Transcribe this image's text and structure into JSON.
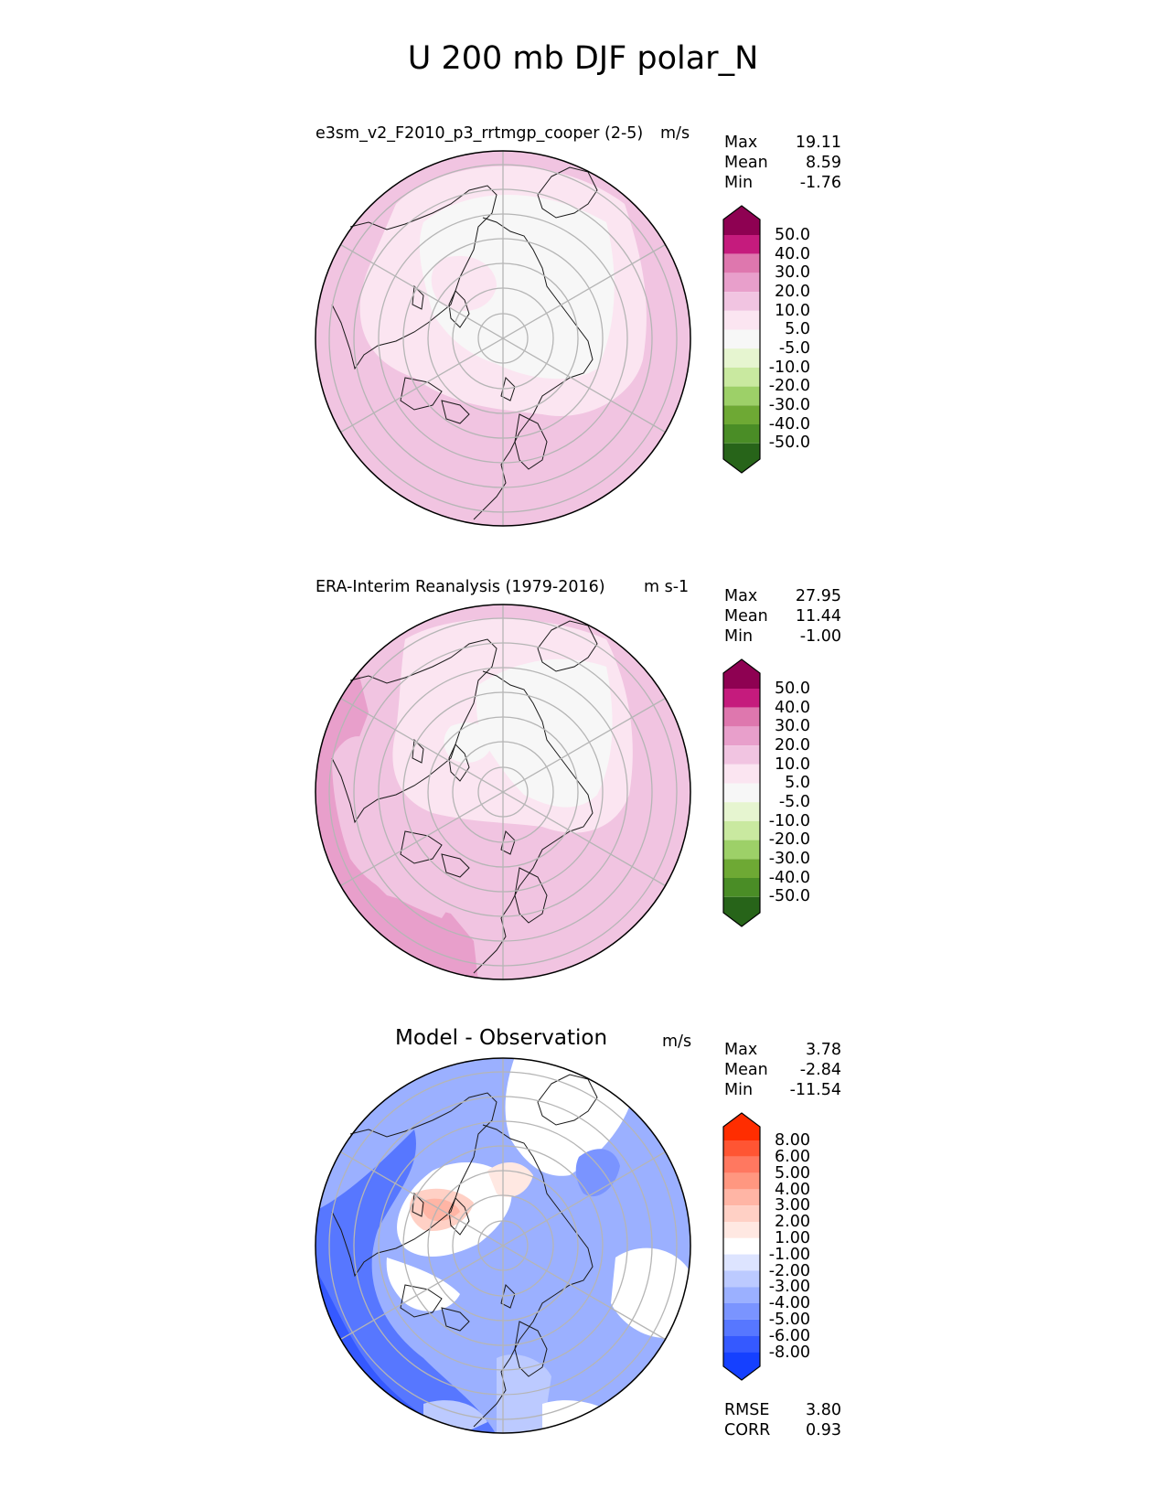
{
  "title": "U 200 mb DJF polar_N",
  "panels": [
    {
      "title": "e3sm_v2_F2010_p3_rrtmgp_cooper (2-5)",
      "units": "m/s",
      "stats": [
        {
          "label": "Max",
          "value": "19.11"
        },
        {
          "label": "Mean",
          "value": "8.59"
        },
        {
          "label": "Min",
          "value": "-1.76"
        }
      ],
      "colorbar": {
        "labels": [
          "50.0",
          "40.0",
          "30.0",
          "20.0",
          "10.0",
          "5.0",
          "-5.0",
          "-10.0",
          "-20.0",
          "-30.0",
          "-40.0",
          "-50.0"
        ],
        "colors": [
          "#8e0152",
          "#c51b7d",
          "#de77ae",
          "#e89fcb",
          "#f1c4e1",
          "#fbe5f1",
          "#f7f7f7",
          "#e6f5d0",
          "#c9e9a0",
          "#9dd068",
          "#6ea934",
          "#4a8d26",
          "#276419"
        ]
      }
    },
    {
      "title": "ERA-Interim Reanalysis (1979-2016)",
      "units": "m s-1",
      "stats": [
        {
          "label": "Max",
          "value": "27.95"
        },
        {
          "label": "Mean",
          "value": "11.44"
        },
        {
          "label": "Min",
          "value": "-1.00"
        }
      ],
      "colorbar": {
        "labels": [
          "50.0",
          "40.0",
          "30.0",
          "20.0",
          "10.0",
          "5.0",
          "-5.0",
          "-10.0",
          "-20.0",
          "-30.0",
          "-40.0",
          "-50.0"
        ],
        "colors": [
          "#8e0152",
          "#c51b7d",
          "#de77ae",
          "#e89fcb",
          "#f1c4e1",
          "#fbe5f1",
          "#f7f7f7",
          "#e6f5d0",
          "#c9e9a0",
          "#9dd068",
          "#6ea934",
          "#4a8d26",
          "#276419"
        ]
      }
    },
    {
      "title": "Model - Observation",
      "units": "m/s",
      "stats": [
        {
          "label": "Max",
          "value": "3.78"
        },
        {
          "label": "Mean",
          "value": "-2.84"
        },
        {
          "label": "Min",
          "value": "-11.54"
        }
      ],
      "colorbar": {
        "labels": [
          "8.00",
          "6.00",
          "5.00",
          "4.00",
          "3.00",
          "2.00",
          "1.00",
          "-1.00",
          "-2.00",
          "-3.00",
          "-4.00",
          "-5.00",
          "-6.00",
          "-8.00"
        ],
        "colors": [
          "#ff2d00",
          "#ff5533",
          "#ff7860",
          "#ff9780",
          "#ffb5a5",
          "#ffd0c5",
          "#ffe8e2",
          "#ffffff",
          "#dde4ff",
          "#bccaff",
          "#9bb0ff",
          "#7a94ff",
          "#5777ff",
          "#3559ff",
          "#1540ff"
        ]
      },
      "metrics": [
        {
          "label": "RMSE",
          "value": "3.80"
        },
        {
          "label": "CORR",
          "value": "0.93"
        }
      ]
    }
  ]
}
